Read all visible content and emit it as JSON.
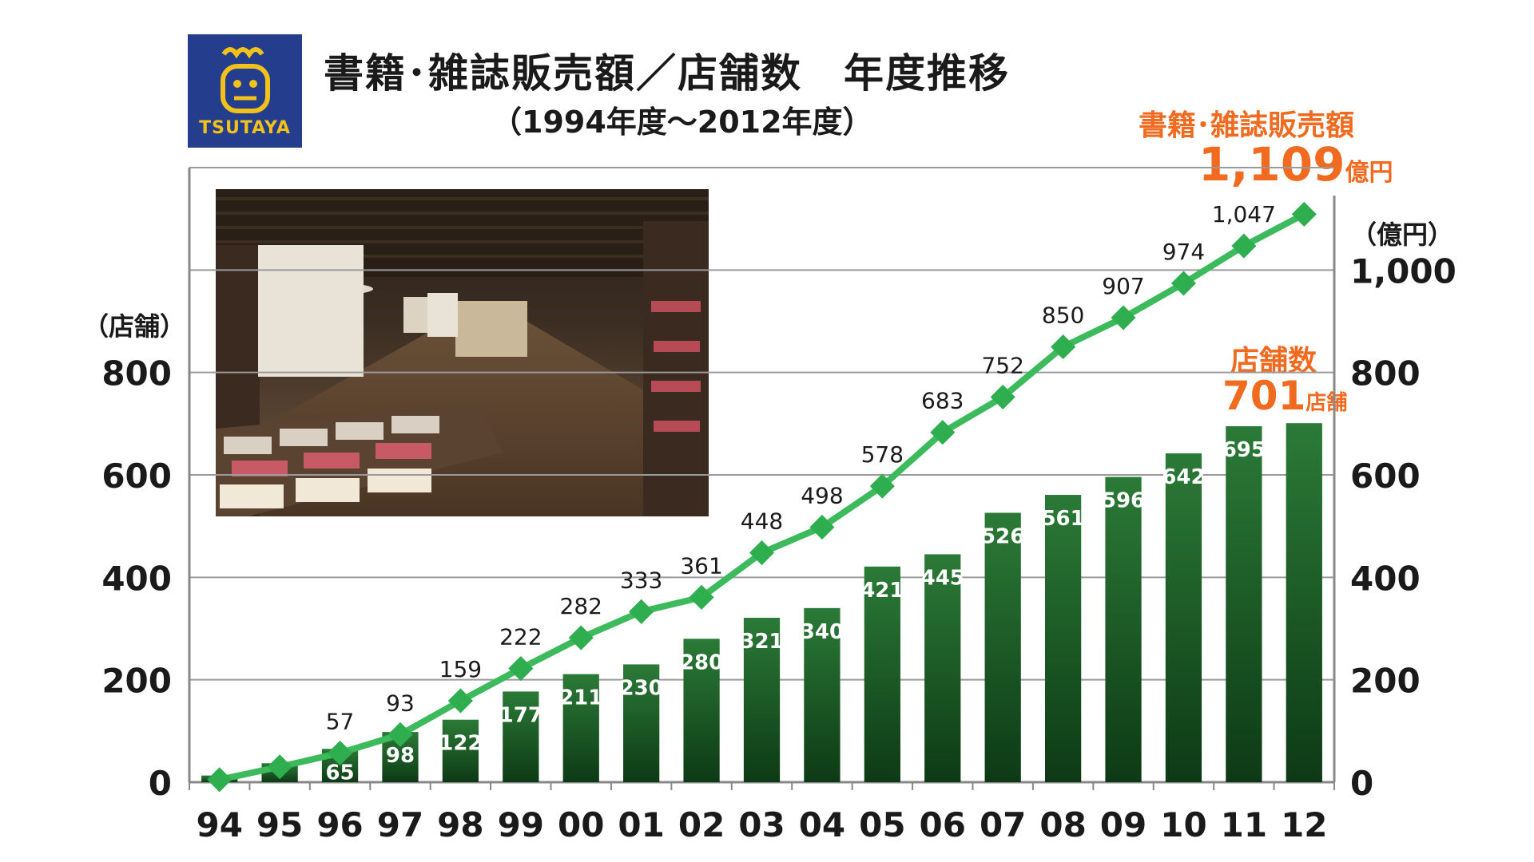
{
  "logo": {
    "text": "TSUTAYA"
  },
  "header": {
    "title": "書籍･雑誌販売額／店舗数　年度推移",
    "subtitle": "（1994年度～2012年度）"
  },
  "annotations": {
    "sales_label": "書籍･雑誌販売額",
    "sales_value": "1,109",
    "sales_unit": "億円",
    "stores_label": "店舗数",
    "stores_value": "701",
    "stores_unit": "店舗"
  },
  "colors": {
    "bar_top": "#2b7a37",
    "bar_bottom": "#0d3a15",
    "line": "#3dbb5c",
    "marker": "#2fae4f",
    "annotation": "#f06a1f",
    "grid": "#9a9a9a"
  },
  "chart_data": {
    "type": "bar",
    "categories": [
      "94",
      "95",
      "96",
      "97",
      "98",
      "99",
      "00",
      "01",
      "02",
      "03",
      "04",
      "05",
      "06",
      "07",
      "08",
      "09",
      "10",
      "11",
      "12"
    ],
    "series": [
      {
        "type": "bar",
        "axis": "left",
        "values": [
          13,
          37,
          65,
          98,
          122,
          177,
          211,
          230,
          280,
          321,
          340,
          421,
          445,
          526,
          561,
          596,
          642,
          695,
          701
        ],
        "labels": [
          "",
          "",
          "65",
          "98",
          "122",
          "177",
          "211",
          "230",
          "280",
          "321",
          "340",
          "421",
          "445",
          "526",
          "561",
          "596",
          "642",
          "695",
          ""
        ]
      },
      {
        "type": "line",
        "axis": "right",
        "values": [
          5,
          30,
          57,
          93,
          159,
          222,
          282,
          333,
          361,
          448,
          498,
          578,
          683,
          752,
          850,
          907,
          974,
          1047,
          1109
        ],
        "labels": [
          "",
          "",
          "57",
          "93",
          "159",
          "222",
          "282",
          "333",
          "361",
          "448",
          "498",
          "578",
          "683",
          "752",
          "850",
          "907",
          "974",
          "1,047",
          ""
        ]
      }
    ],
    "left_axis": {
      "label": "（店舗）",
      "ticks": [
        0,
        200,
        400,
        600,
        800
      ],
      "tick_labels": [
        "0",
        "200",
        "400",
        "600",
        "800"
      ],
      "range": [
        0,
        1200
      ]
    },
    "right_axis": {
      "label": "（億円）",
      "ticks": [
        0,
        200,
        400,
        600,
        800,
        1000
      ],
      "tick_labels": [
        "0",
        "200",
        "400",
        "600",
        "800",
        "1,000"
      ],
      "range": [
        0,
        1200
      ]
    },
    "grid": true
  }
}
